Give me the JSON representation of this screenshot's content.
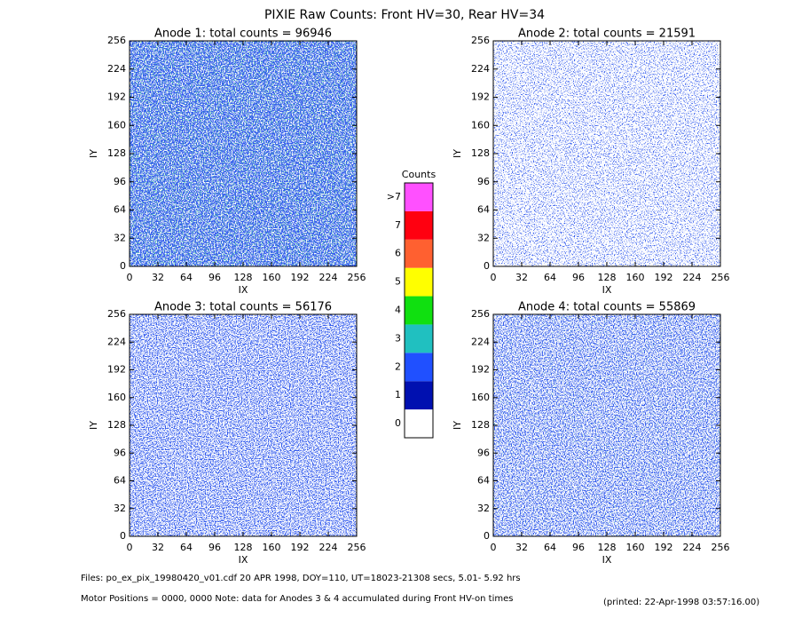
{
  "title": "PIXIE Raw Counts:  Front HV=30, Rear HV=34",
  "chart_data": [
    {
      "type": "heatmap",
      "title": "Anode 1: total counts = 96946",
      "x_label": "IX",
      "y_label": "IY",
      "xlim": [
        0,
        256
      ],
      "ylim": [
        0,
        256
      ],
      "xticks": [
        0,
        32,
        64,
        96,
        128,
        160,
        192,
        224,
        256
      ],
      "yticks": [
        0,
        32,
        64,
        96,
        128,
        160,
        192,
        224,
        256
      ]
    },
    {
      "type": "heatmap",
      "title": "Anode 2: total counts = 21591",
      "x_label": "IX",
      "y_label": "IY",
      "xlim": [
        0,
        256
      ],
      "ylim": [
        0,
        256
      ],
      "xticks": [
        0,
        32,
        64,
        96,
        128,
        160,
        192,
        224,
        256
      ],
      "yticks": [
        0,
        32,
        64,
        96,
        128,
        160,
        192,
        224,
        256
      ]
    },
    {
      "type": "heatmap",
      "title": "Anode 3: total counts = 56176",
      "x_label": "IX",
      "y_label": "IY",
      "xlim": [
        0,
        256
      ],
      "ylim": [
        0,
        256
      ],
      "xticks": [
        0,
        32,
        64,
        96,
        128,
        160,
        192,
        224,
        256
      ],
      "yticks": [
        0,
        32,
        64,
        96,
        128,
        160,
        192,
        224,
        256
      ]
    },
    {
      "type": "heatmap",
      "title": "Anode 4: total counts = 55869",
      "x_label": "IX",
      "y_label": "IY",
      "xlim": [
        0,
        256
      ],
      "ylim": [
        0,
        256
      ],
      "xticks": [
        0,
        32,
        64,
        96,
        128,
        160,
        192,
        224,
        256
      ],
      "yticks": [
        0,
        32,
        64,
        96,
        128,
        160,
        192,
        224,
        256
      ]
    }
  ],
  "colorbar": {
    "title": "Counts",
    "labels": [
      "0",
      "1",
      "2",
      "3",
      "4",
      "5",
      "6",
      "7",
      ">7"
    ],
    "colors": [
      "#ffffff",
      "#0010b0",
      "#2050ff",
      "#20c0c0",
      "#10e010",
      "#ffff00",
      "#ff6030",
      "#ff0010",
      "#ff50ff"
    ]
  },
  "footer": {
    "files": "Files: po_ex_pix_19980420_v01.cdf    20 APR 1998, DOY=110, UT=18023-21308 secs,  5.01- 5.92 hrs",
    "motor": "Motor Positions = 0000, 0000    Note: data for Anodes 3 & 4 accumulated during Front HV-on times",
    "printed": "(printed: 22-Apr-1998 03:57:16.00)"
  }
}
